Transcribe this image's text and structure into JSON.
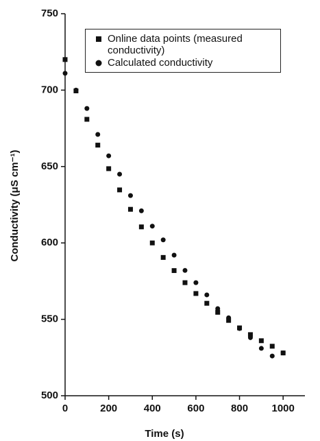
{
  "chart_data": {
    "type": "scatter",
    "x_label": "Time (s)",
    "y_label": "Conductivity (μS cm⁻¹)",
    "x": [
      0,
      50,
      100,
      150,
      200,
      250,
      300,
      350,
      400,
      450,
      500,
      550,
      600,
      650,
      700,
      750,
      800,
      850,
      900,
      950,
      1000
    ],
    "series": [
      {
        "name": "Online data points (measured conductivity)",
        "color": "#111111",
        "marker": "square",
        "values": [
          720,
          699.5,
          680.9,
          664,
          648.6,
          634.7,
          622,
          610.5,
          600,
          590.5,
          581.9,
          574,
          566.9,
          560.5,
          554.6,
          549.3,
          544.4,
          540,
          536,
          532.4,
          528
        ]
      },
      {
        "name": "Calculated conductivity",
        "color": "#111111",
        "marker": "circle",
        "values": [
          711,
          700,
          688,
          671,
          657,
          645,
          631,
          621,
          611,
          602,
          592,
          582,
          574,
          566,
          557,
          551,
          544,
          538,
          531,
          526,
          528
        ]
      }
    ],
    "xlim": [
      0,
      1100
    ],
    "ylim": [
      500,
      750
    ],
    "xticks": [
      0,
      200,
      400,
      600,
      800,
      1000
    ],
    "yticks": [
      500,
      550,
      600,
      650,
      700,
      750
    ]
  }
}
